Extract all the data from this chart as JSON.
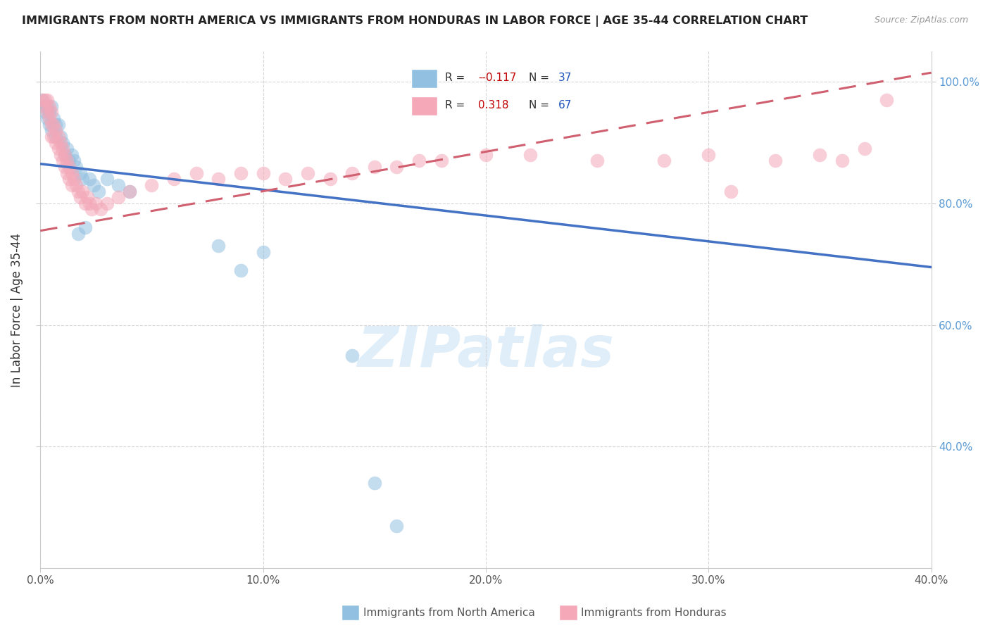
{
  "title": "IMMIGRANTS FROM NORTH AMERICA VS IMMIGRANTS FROM HONDURAS IN LABOR FORCE | AGE 35-44 CORRELATION CHART",
  "source": "Source: ZipAtlas.com",
  "ylabel": "In Labor Force | Age 35-44",
  "watermark": "ZIPatlas",
  "legend_blue_r": "-0.117",
  "legend_blue_n": "37",
  "legend_pink_r": "0.318",
  "legend_pink_n": "67",
  "blue_color": "#92c0e0",
  "pink_color": "#f4a8b8",
  "blue_line_color": "#4472c4",
  "pink_line_color": "#d06070",
  "blue_scatter": [
    [
      0.001,
      0.97
    ],
    [
      0.002,
      0.96
    ],
    [
      0.002,
      0.95
    ],
    [
      0.003,
      0.96
    ],
    [
      0.003,
      0.94
    ],
    [
      0.004,
      0.95
    ],
    [
      0.004,
      0.93
    ],
    [
      0.005,
      0.96
    ],
    [
      0.005,
      0.92
    ],
    [
      0.006,
      0.94
    ],
    [
      0.007,
      0.93
    ],
    [
      0.007,
      0.91
    ],
    [
      0.008,
      0.93
    ],
    [
      0.009,
      0.91
    ],
    [
      0.01,
      0.9
    ],
    [
      0.011,
      0.88
    ],
    [
      0.012,
      0.89
    ],
    [
      0.013,
      0.87
    ],
    [
      0.014,
      0.88
    ],
    [
      0.015,
      0.87
    ],
    [
      0.016,
      0.86
    ],
    [
      0.017,
      0.75
    ],
    [
      0.018,
      0.85
    ],
    [
      0.019,
      0.84
    ],
    [
      0.02,
      0.76
    ],
    [
      0.022,
      0.84
    ],
    [
      0.024,
      0.83
    ],
    [
      0.026,
      0.82
    ],
    [
      0.03,
      0.84
    ],
    [
      0.035,
      0.83
    ],
    [
      0.04,
      0.82
    ],
    [
      0.08,
      0.73
    ],
    [
      0.09,
      0.69
    ],
    [
      0.1,
      0.72
    ],
    [
      0.14,
      0.55
    ],
    [
      0.15,
      0.34
    ],
    [
      0.16,
      0.27
    ]
  ],
  "pink_scatter": [
    [
      0.001,
      0.97
    ],
    [
      0.002,
      0.97
    ],
    [
      0.002,
      0.96
    ],
    [
      0.003,
      0.97
    ],
    [
      0.003,
      0.95
    ],
    [
      0.004,
      0.96
    ],
    [
      0.004,
      0.94
    ],
    [
      0.005,
      0.95
    ],
    [
      0.005,
      0.93
    ],
    [
      0.005,
      0.91
    ],
    [
      0.006,
      0.93
    ],
    [
      0.006,
      0.91
    ],
    [
      0.007,
      0.92
    ],
    [
      0.007,
      0.9
    ],
    [
      0.008,
      0.91
    ],
    [
      0.008,
      0.89
    ],
    [
      0.009,
      0.9
    ],
    [
      0.009,
      0.88
    ],
    [
      0.01,
      0.89
    ],
    [
      0.01,
      0.87
    ],
    [
      0.011,
      0.88
    ],
    [
      0.011,
      0.86
    ],
    [
      0.012,
      0.87
    ],
    [
      0.012,
      0.85
    ],
    [
      0.013,
      0.86
    ],
    [
      0.013,
      0.84
    ],
    [
      0.014,
      0.85
    ],
    [
      0.014,
      0.83
    ],
    [
      0.015,
      0.84
    ],
    [
      0.016,
      0.83
    ],
    [
      0.017,
      0.82
    ],
    [
      0.018,
      0.81
    ],
    [
      0.019,
      0.82
    ],
    [
      0.02,
      0.8
    ],
    [
      0.021,
      0.81
    ],
    [
      0.022,
      0.8
    ],
    [
      0.023,
      0.79
    ],
    [
      0.025,
      0.8
    ],
    [
      0.027,
      0.79
    ],
    [
      0.03,
      0.8
    ],
    [
      0.035,
      0.81
    ],
    [
      0.04,
      0.82
    ],
    [
      0.05,
      0.83
    ],
    [
      0.06,
      0.84
    ],
    [
      0.07,
      0.85
    ],
    [
      0.08,
      0.84
    ],
    [
      0.09,
      0.85
    ],
    [
      0.1,
      0.85
    ],
    [
      0.11,
      0.84
    ],
    [
      0.12,
      0.85
    ],
    [
      0.13,
      0.84
    ],
    [
      0.14,
      0.85
    ],
    [
      0.15,
      0.86
    ],
    [
      0.16,
      0.86
    ],
    [
      0.17,
      0.87
    ],
    [
      0.18,
      0.87
    ],
    [
      0.2,
      0.88
    ],
    [
      0.22,
      0.88
    ],
    [
      0.25,
      0.87
    ],
    [
      0.28,
      0.87
    ],
    [
      0.3,
      0.88
    ],
    [
      0.31,
      0.82
    ],
    [
      0.33,
      0.87
    ],
    [
      0.35,
      0.88
    ],
    [
      0.36,
      0.87
    ],
    [
      0.37,
      0.89
    ],
    [
      0.38,
      0.97
    ]
  ],
  "xmin": 0.0,
  "xmax": 0.4,
  "ymin": 0.2,
  "ymax": 1.05,
  "yticks": [
    0.4,
    0.6,
    0.8,
    1.0
  ],
  "ytick_labels": [
    "40.0%",
    "60.0%",
    "80.0%",
    "100.0%"
  ],
  "xticks": [
    0.0,
    0.1,
    0.2,
    0.3,
    0.4
  ],
  "xtick_labels": [
    "0.0%",
    "10.0%",
    "20.0%",
    "30.0%",
    "40.0%"
  ],
  "grid_color": "#cccccc",
  "background_color": "#ffffff",
  "blue_line_x0": 0.0,
  "blue_line_y0": 0.865,
  "blue_line_x1": 0.4,
  "blue_line_y1": 0.695,
  "pink_line_x0": 0.0,
  "pink_line_y0": 0.755,
  "pink_line_x1": 0.4,
  "pink_line_y1": 1.015
}
